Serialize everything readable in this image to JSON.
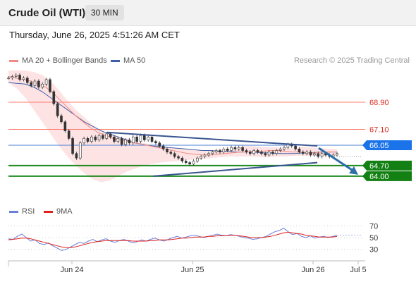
{
  "header": {
    "title": "Crude Oil (WTI)",
    "interval": "30 MIN",
    "datetime": "Thursday, June 26, 2025 4:51:26 AM CET"
  },
  "legend": {
    "ma20": "MA 20 + Bollinger Bands",
    "ma50": "MA 50",
    "copyright": "Research © 2025 Trading Central",
    "rsi": "RSI",
    "ma9": "9MA"
  },
  "colors": {
    "ma20": "#f28b82",
    "ma50": "#3f5fa8",
    "band_fill": "#fde3e3",
    "resistance": "#ff7b6b",
    "pivot": "#4a7fd4",
    "support": "#1e8a1e",
    "trendline": "#3a5590",
    "rsi": "#6a7fd9",
    "rsi_ma": "#e02020",
    "candle": "#333333"
  },
  "chart_data": [
    {
      "type": "candlestick",
      "ylim": [
        62.5,
        71.0
      ],
      "x_ticks": [
        "Jun 24",
        "Jun 25",
        "Jun 26",
        "Jul 5"
      ],
      "levels": [
        {
          "label": "68.90",
          "value": 68.9,
          "kind": "resistance"
        },
        {
          "label": "67.10",
          "value": 67.1,
          "kind": "resistance"
        },
        {
          "label": "66.05",
          "value": 66.05,
          "kind": "pivot"
        },
        {
          "label": "64.70",
          "value": 64.7,
          "kind": "support"
        },
        {
          "label": "64.00",
          "value": 64.0,
          "kind": "support"
        }
      ],
      "last_price_label": "65.30",
      "close": [
        70.5,
        70.6,
        70.7,
        70.4,
        70.5,
        70.2,
        70.0,
        70.3,
        69.9,
        70.1,
        70.4,
        69.6,
        68.8,
        68.0,
        67.6,
        67.0,
        66.5,
        65.5,
        65.2,
        66.2,
        66.5,
        66.3,
        66.6,
        66.4,
        66.7,
        66.5,
        66.8,
        66.6,
        66.3,
        66.5,
        66.1,
        66.4,
        66.2,
        66.6,
        66.3,
        66.7,
        66.4,
        66.6,
        66.3,
        66.2,
        66.0,
        65.8,
        65.6,
        65.5,
        65.3,
        65.2,
        65.0,
        64.9,
        64.8,
        65.0,
        65.2,
        65.3,
        65.4,
        65.5,
        65.6,
        65.7,
        65.6,
        65.8,
        65.7,
        65.9,
        65.8,
        65.9,
        65.7,
        65.6,
        65.5,
        65.7,
        65.6,
        65.5,
        65.4,
        65.6,
        65.5,
        65.7,
        65.8,
        65.9,
        66.1,
        66.0,
        65.8,
        65.6,
        65.5,
        65.6,
        65.4,
        65.5,
        65.3,
        65.5,
        65.4,
        65.3,
        65.4,
        65.5
      ],
      "ma20": [
        70.6,
        70.5,
        70.4,
        70.3,
        70.1,
        69.9,
        69.5,
        69.0,
        68.5,
        68.0,
        67.6,
        67.2,
        66.9,
        66.7,
        66.5,
        66.4,
        66.3,
        66.2,
        66.1,
        66.0,
        65.9,
        65.8,
        65.7,
        65.6,
        65.5,
        65.45,
        65.4,
        65.4,
        65.45,
        65.5,
        65.55,
        65.6,
        65.6,
        65.65,
        65.65,
        65.7,
        65.7,
        65.65,
        65.6,
        65.6,
        65.55,
        65.55,
        65.6,
        65.6,
        65.6
      ],
      "ma50": [
        70.2,
        70.15,
        70.1,
        69.9,
        69.6,
        69.2,
        68.8,
        68.4,
        68.0,
        67.6,
        67.3,
        67.0,
        66.8,
        66.6,
        66.4,
        66.2,
        66.1,
        66.0,
        65.95,
        65.9,
        65.85,
        65.8,
        65.75,
        65.7,
        65.7,
        65.65,
        65.65,
        65.6,
        65.6,
        65.6,
        65.55,
        65.55,
        65.5,
        65.5,
        65.5,
        65.55,
        65.55,
        65.6,
        65.6,
        65.6
      ],
      "band_upper": [
        71.0,
        71.0,
        71.0,
        70.9,
        70.7,
        70.3,
        69.7,
        69.0,
        68.4,
        67.9,
        67.4,
        67.0,
        66.8,
        66.6,
        66.5,
        66.3,
        66.2,
        66.1,
        66.0,
        65.9,
        65.85,
        65.8,
        65.75,
        65.7,
        65.7,
        65.75,
        65.8,
        65.9,
        66.0,
        66.0,
        65.95,
        65.9,
        65.9,
        65.85,
        65.9,
        65.95,
        65.9,
        65.85,
        65.8,
        65.8
      ],
      "band_lower": [
        70.2,
        69.8,
        69.2,
        68.4,
        67.6,
        66.8,
        66.0,
        65.3,
        64.7,
        64.2,
        63.8,
        63.6,
        63.7,
        64.0,
        64.3,
        64.5,
        64.7,
        64.8,
        64.9,
        64.95,
        65.0,
        65.05,
        65.1,
        65.15,
        65.2,
        65.25,
        65.3,
        65.3,
        65.3,
        65.3,
        65.25,
        65.25,
        65.3,
        65.3,
        65.35,
        65.35,
        65.35,
        65.35,
        65.35,
        65.35
      ],
      "trend_upper": [
        [
          0.3,
          66.9
        ],
        [
          0.94,
          66.0
        ]
      ],
      "trend_lower": [
        [
          0.44,
          64.0
        ],
        [
          0.94,
          64.9
        ]
      ],
      "projection": [
        [
          0.94,
          65.3
        ],
        [
          1.0,
          64.0
        ]
      ]
    },
    {
      "type": "line",
      "title": "RSI",
      "ylim": [
        20,
        80
      ],
      "y_ticks": [
        "70",
        "50",
        "30"
      ],
      "series": [
        {
          "name": "RSI",
          "values": [
            48,
            47,
            52,
            56,
            50,
            44,
            46,
            40,
            38,
            41,
            36,
            32,
            28,
            30,
            34,
            38,
            42,
            40,
            44,
            47,
            43,
            46,
            48,
            44,
            42,
            45,
            47,
            44,
            41,
            43,
            46,
            44,
            47,
            49,
            46,
            44,
            47,
            50,
            52,
            49,
            51,
            53,
            54,
            52,
            50,
            52,
            54,
            56,
            54,
            53,
            55,
            54,
            52,
            50,
            49,
            47,
            48,
            50,
            52,
            56,
            60,
            62,
            66,
            60,
            55,
            57,
            52,
            50,
            53,
            49,
            51,
            52,
            50,
            52,
            54
          ]
        },
        {
          "name": "9MA",
          "values": [
            46,
            47,
            48,
            49,
            49,
            48,
            46,
            44,
            42,
            40,
            38,
            36,
            34,
            33,
            33,
            34,
            36,
            38,
            40,
            42,
            43,
            44,
            45,
            45,
            45,
            45,
            45,
            45,
            44,
            44,
            44,
            44,
            45,
            45,
            46,
            46,
            46,
            47,
            48,
            49,
            49,
            50,
            51,
            51,
            51,
            52,
            52,
            53,
            53,
            53,
            54,
            54,
            53,
            52,
            51,
            50,
            50,
            50,
            51,
            52,
            54,
            56,
            58,
            59,
            58,
            57,
            56,
            54,
            53,
            52,
            51,
            51,
            51,
            51,
            52
          ]
        }
      ]
    }
  ]
}
